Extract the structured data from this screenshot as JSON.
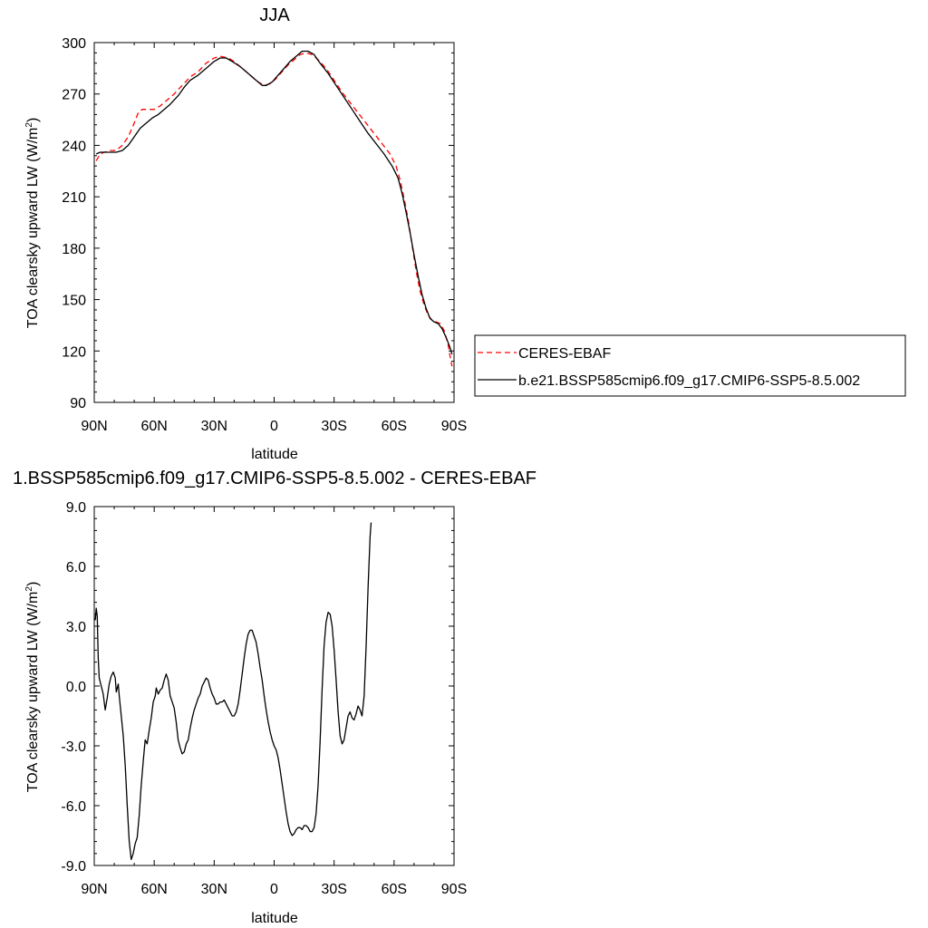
{
  "chart_data": [
    {
      "type": "line",
      "title": "JJA",
      "xlabel": "latitude",
      "ylabel": "TOA clearsky upward LW (W/m2)",
      "ylabel_main": "TOA clearsky upward LW (W/m",
      "ylabel_sup": "2",
      "ylabel_tail": ")",
      "xlim": [
        90,
        -90
      ],
      "ylim": [
        90,
        300
      ],
      "x_ticks": [
        90,
        60,
        30,
        0,
        -30,
        -60,
        -90
      ],
      "x_tick_labels": [
        "90N",
        "60N",
        "30N",
        "0",
        "30S",
        "60S",
        "90S"
      ],
      "y_ticks": [
        90,
        120,
        150,
        180,
        210,
        240,
        270,
        300
      ],
      "y_tick_labels": [
        "90",
        "120",
        "150",
        "180",
        "210",
        "240",
        "270",
        "300"
      ],
      "legend_position": "right",
      "series": [
        {
          "name": "CERES-EBAF",
          "color": "#ff0000",
          "style": "dashed",
          "points": [
            [
              89,
              231
            ],
            [
              87,
              235
            ],
            [
              85,
              236
            ],
            [
              82,
              237
            ],
            [
              79,
              237
            ],
            [
              76,
              240
            ],
            [
              73,
              245
            ],
            [
              70,
              253
            ],
            [
              68,
              259
            ],
            [
              66,
              261
            ],
            [
              63,
              261
            ],
            [
              60,
              261
            ],
            [
              57,
              263
            ],
            [
              54,
              266
            ],
            [
              50,
              270
            ],
            [
              46,
              275
            ],
            [
              42,
              280
            ],
            [
              38,
              283
            ],
            [
              34,
              288
            ],
            [
              30,
              291
            ],
            [
              27,
              292
            ],
            [
              23,
              291
            ],
            [
              20,
              289
            ],
            [
              16,
              285
            ],
            [
              12,
              281
            ],
            [
              8,
              277
            ],
            [
              5,
              275
            ],
            [
              2,
              276
            ],
            [
              -1,
              279
            ],
            [
              -4,
              283
            ],
            [
              -7,
              287
            ],
            [
              -10,
              290
            ],
            [
              -13,
              293
            ],
            [
              -16,
              294
            ],
            [
              -19,
              293
            ],
            [
              -22,
              290
            ],
            [
              -26,
              285
            ],
            [
              -30,
              278
            ],
            [
              -34,
              271
            ],
            [
              -38,
              265
            ],
            [
              -42,
              259
            ],
            [
              -46,
              253
            ],
            [
              -50,
              247
            ],
            [
              -54,
              241
            ],
            [
              -58,
              235
            ],
            [
              -61,
              228
            ],
            [
              -63,
              220
            ],
            [
              -65,
              209
            ],
            [
              -67,
              197
            ],
            [
              -69,
              182
            ],
            [
              -71,
              167
            ],
            [
              -73,
              155
            ],
            [
              -75,
              147
            ],
            [
              -77,
              141
            ],
            [
              -79,
              138
            ],
            [
              -81,
              137
            ],
            [
              -83,
              136
            ],
            [
              -85,
              132
            ],
            [
              -87,
              124
            ],
            [
              -88,
              117
            ],
            [
              -89,
              111
            ]
          ]
        },
        {
          "name": "b.e21.BSSP585cmip6.f09_g17.CMIP6-SSP5-8.5.002",
          "color": "#000000",
          "style": "solid",
          "points": [
            [
              89,
              235
            ],
            [
              87,
              236
            ],
            [
              85,
              236
            ],
            [
              82,
              236
            ],
            [
              79,
              236
            ],
            [
              76,
              237
            ],
            [
              73,
              240
            ],
            [
              70,
              245
            ],
            [
              67,
              250
            ],
            [
              64,
              253
            ],
            [
              61,
              256
            ],
            [
              58,
              258
            ],
            [
              55,
              261
            ],
            [
              52,
              264
            ],
            [
              48,
              269
            ],
            [
              45,
              274
            ],
            [
              42,
              278
            ],
            [
              38,
              281
            ],
            [
              34,
              285
            ],
            [
              30,
              289
            ],
            [
              27,
              291
            ],
            [
              24,
              291
            ],
            [
              21,
              289
            ],
            [
              17,
              286
            ],
            [
              13,
              282
            ],
            [
              9,
              278
            ],
            [
              6,
              275
            ],
            [
              4,
              275
            ],
            [
              1,
              277
            ],
            [
              -2,
              281
            ],
            [
              -5,
              285
            ],
            [
              -8,
              289
            ],
            [
              -11,
              292
            ],
            [
              -14,
              295
            ],
            [
              -17,
              295
            ],
            [
              -20,
              293
            ],
            [
              -23,
              288
            ],
            [
              -27,
              282
            ],
            [
              -31,
              275
            ],
            [
              -35,
              268
            ],
            [
              -39,
              261
            ],
            [
              -43,
              254
            ],
            [
              -47,
              247
            ],
            [
              -51,
              241
            ],
            [
              -55,
              235
            ],
            [
              -59,
              228
            ],
            [
              -62,
              221
            ],
            [
              -64,
              212
            ],
            [
              -66,
              201
            ],
            [
              -68,
              189
            ],
            [
              -70,
              176
            ],
            [
              -72,
              164
            ],
            [
              -74,
              153
            ],
            [
              -76,
              145
            ],
            [
              -78,
              139
            ],
            [
              -80,
              137
            ],
            [
              -82,
              136
            ],
            [
              -84,
              133
            ],
            [
              -86,
              128
            ],
            [
              -88,
              122
            ],
            [
              -89,
              118
            ]
          ]
        }
      ]
    },
    {
      "type": "line",
      "title": "1.BSSP585cmip6.f09_g17.CMIP6-SSP5-8.5.002 - CERES-EBAF",
      "xlabel": "latitude",
      "ylabel": "TOA clearsky upward LW (W/m2)",
      "ylabel_main": "TOA clearsky upward LW (W/m",
      "ylabel_sup": "2",
      "ylabel_tail": ")",
      "xlim": [
        90,
        -90
      ],
      "ylim": [
        -9,
        9
      ],
      "x_ticks": [
        90,
        60,
        30,
        0,
        -30,
        -60,
        -90
      ],
      "x_tick_labels": [
        "90N",
        "60N",
        "30N",
        "0",
        "30S",
        "60S",
        "90S"
      ],
      "y_ticks": [
        -9,
        -6,
        -3,
        0,
        3,
        6,
        9
      ],
      "y_tick_labels": [
        "-9.0",
        "-6.0",
        "-3.0",
        "0.0",
        "3.0",
        "6.0",
        "9.0"
      ],
      "series": [
        {
          "color": "#000000",
          "style": "solid",
          "points": [
            [
              89.5,
              3.3
            ],
            [
              89,
              3.9
            ],
            [
              88.5,
              3.5
            ],
            [
              88,
              1.4
            ],
            [
              87.5,
              0.4
            ],
            [
              86.5,
              0.0
            ],
            [
              85.5,
              -0.4
            ],
            [
              84.5,
              -1.2
            ],
            [
              83.5,
              -0.6
            ],
            [
              82.5,
              0.1
            ],
            [
              81.5,
              0.5
            ],
            [
              80.5,
              0.7
            ],
            [
              79.5,
              0.4
            ],
            [
              79,
              -0.3
            ],
            [
              78.5,
              -0.1
            ],
            [
              78,
              0.1
            ],
            [
              77.5,
              -0.5
            ],
            [
              76.5,
              -1.5
            ],
            [
              75.5,
              -2.5
            ],
            [
              74.5,
              -4.0
            ],
            [
              73.5,
              -6.0
            ],
            [
              72.5,
              -7.8
            ],
            [
              71.5,
              -8.7
            ],
            [
              70.5,
              -8.4
            ],
            [
              69.5,
              -7.9
            ],
            [
              68.5,
              -7.6
            ],
            [
              67.5,
              -6.5
            ],
            [
              66.5,
              -5.0
            ],
            [
              65.5,
              -3.8
            ],
            [
              64.5,
              -2.7
            ],
            [
              63.5,
              -2.9
            ],
            [
              62.5,
              -2.2
            ],
            [
              61.5,
              -1.6
            ],
            [
              60.5,
              -0.8
            ],
            [
              59.5,
              -0.5
            ],
            [
              59,
              -0.1
            ],
            [
              58,
              -0.4
            ],
            [
              57,
              -0.2
            ],
            [
              56,
              -0.1
            ],
            [
              55,
              0.3
            ],
            [
              54,
              0.6
            ],
            [
              53,
              0.3
            ],
            [
              52,
              -0.5
            ],
            [
              51,
              -0.8
            ],
            [
              50,
              -1.1
            ],
            [
              49,
              -1.8
            ],
            [
              48,
              -2.7
            ],
            [
              47,
              -3.1
            ],
            [
              46,
              -3.4
            ],
            [
              45,
              -3.3
            ],
            [
              44,
              -2.9
            ],
            [
              43,
              -2.7
            ],
            [
              42,
              -2.1
            ],
            [
              41,
              -1.6
            ],
            [
              40,
              -1.2
            ],
            [
              39,
              -0.9
            ],
            [
              38,
              -0.6
            ],
            [
              37,
              -0.4
            ],
            [
              36,
              0.0
            ],
            [
              35,
              0.2
            ],
            [
              34,
              0.4
            ],
            [
              33,
              0.3
            ],
            [
              32,
              -0.1
            ],
            [
              31,
              -0.4
            ],
            [
              30,
              -0.6
            ],
            [
              29,
              -0.9
            ],
            [
              28,
              -0.9
            ],
            [
              27,
              -0.8
            ],
            [
              26,
              -0.8
            ],
            [
              25,
              -0.7
            ],
            [
              24,
              -0.9
            ],
            [
              23,
              -1.1
            ],
            [
              22,
              -1.3
            ],
            [
              21,
              -1.5
            ],
            [
              20,
              -1.5
            ],
            [
              19,
              -1.3
            ],
            [
              18,
              -0.9
            ],
            [
              17,
              -0.2
            ],
            [
              16,
              0.6
            ],
            [
              15,
              1.4
            ],
            [
              14,
              2.1
            ],
            [
              13,
              2.6
            ],
            [
              12,
              2.8
            ],
            [
              11,
              2.8
            ],
            [
              10,
              2.5
            ],
            [
              9,
              2.2
            ],
            [
              8,
              1.6
            ],
            [
              7,
              0.9
            ],
            [
              6,
              0.3
            ],
            [
              5,
              -0.5
            ],
            [
              4,
              -1.2
            ],
            [
              3,
              -1.8
            ],
            [
              2,
              -2.3
            ],
            [
              1,
              -2.7
            ],
            [
              0,
              -3.0
            ],
            [
              -1,
              -3.2
            ],
            [
              -2,
              -3.6
            ],
            [
              -3,
              -4.2
            ],
            [
              -4,
              -4.9
            ],
            [
              -5,
              -5.6
            ],
            [
              -6,
              -6.3
            ],
            [
              -7,
              -6.9
            ],
            [
              -8,
              -7.3
            ],
            [
              -9,
              -7.5
            ],
            [
              -10,
              -7.4
            ],
            [
              -11,
              -7.2
            ],
            [
              -12,
              -7.1
            ],
            [
              -13,
              -7.1
            ],
            [
              -14,
              -7.2
            ],
            [
              -15,
              -7.0
            ],
            [
              -16,
              -7.0
            ],
            [
              -17,
              -7.1
            ],
            [
              -18,
              -7.3
            ],
            [
              -19,
              -7.3
            ],
            [
              -20,
              -7.1
            ],
            [
              -21,
              -6.4
            ],
            [
              -22,
              -5.0
            ],
            [
              -23,
              -2.8
            ],
            [
              -24,
              -0.2
            ],
            [
              -25,
              2.0
            ],
            [
              -26,
              3.2
            ],
            [
              -27,
              3.7
            ],
            [
              -28,
              3.6
            ],
            [
              -29,
              3.0
            ],
            [
              -30,
              1.8
            ],
            [
              -31,
              0.3
            ],
            [
              -32,
              -1.3
            ],
            [
              -33,
              -2.5
            ],
            [
              -34,
              -2.9
            ],
            [
              -35,
              -2.7
            ],
            [
              -36,
              -2.1
            ],
            [
              -37,
              -1.5
            ],
            [
              -38,
              -1.3
            ],
            [
              -39,
              -1.6
            ],
            [
              -40,
              -1.7
            ],
            [
              -41,
              -1.4
            ],
            [
              -42,
              -1.0
            ],
            [
              -43,
              -1.2
            ],
            [
              -44,
              -1.5
            ],
            [
              -45,
              -0.5
            ],
            [
              -46,
              2.0
            ],
            [
              -47,
              5.0
            ],
            [
              -48,
              7.5
            ],
            [
              -48.5,
              8.2
            ]
          ]
        }
      ]
    }
  ]
}
